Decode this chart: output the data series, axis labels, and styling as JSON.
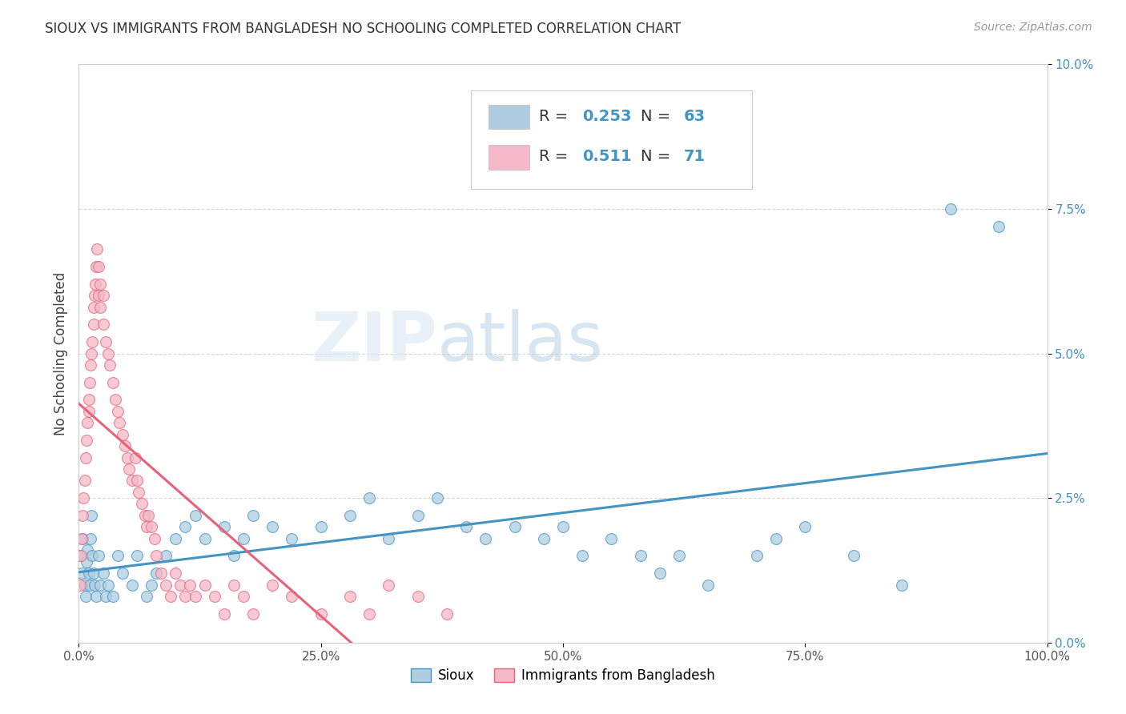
{
  "title": "SIOUX VS IMMIGRANTS FROM BANGLADESH NO SCHOOLING COMPLETED CORRELATION CHART",
  "source": "Source: ZipAtlas.com",
  "ylabel": "No Schooling Completed",
  "legend1_label": "Sioux",
  "legend2_label": "Immigrants from Bangladesh",
  "R1": 0.253,
  "N1": 63,
  "R2": 0.511,
  "N2": 71,
  "color1": "#aecde1",
  "color2": "#f4b8c8",
  "line1_color": "#4393c3",
  "line2_color": "#e8637a",
  "background": "#ffffff",
  "grid_color": "#cccccc",
  "xlim": [
    0.0,
    1.0
  ],
  "ylim": [
    0.0,
    0.1
  ],
  "sioux_x": [
    0.002,
    0.003,
    0.004,
    0.006,
    0.007,
    0.008,
    0.009,
    0.01,
    0.011,
    0.012,
    0.013,
    0.014,
    0.015,
    0.016,
    0.018,
    0.02,
    0.022,
    0.025,
    0.028,
    0.03,
    0.035,
    0.04,
    0.045,
    0.055,
    0.06,
    0.07,
    0.075,
    0.08,
    0.09,
    0.1,
    0.11,
    0.12,
    0.13,
    0.15,
    0.16,
    0.17,
    0.18,
    0.2,
    0.22,
    0.25,
    0.28,
    0.3,
    0.32,
    0.35,
    0.37,
    0.4,
    0.42,
    0.45,
    0.48,
    0.5,
    0.52,
    0.55,
    0.58,
    0.6,
    0.62,
    0.65,
    0.7,
    0.72,
    0.75,
    0.8,
    0.85,
    0.9,
    0.95
  ],
  "sioux_y": [
    0.015,
    0.012,
    0.018,
    0.01,
    0.008,
    0.014,
    0.016,
    0.012,
    0.01,
    0.018,
    0.022,
    0.015,
    0.012,
    0.01,
    0.008,
    0.015,
    0.01,
    0.012,
    0.008,
    0.01,
    0.008,
    0.015,
    0.012,
    0.01,
    0.015,
    0.008,
    0.01,
    0.012,
    0.015,
    0.018,
    0.02,
    0.022,
    0.018,
    0.02,
    0.015,
    0.018,
    0.022,
    0.02,
    0.018,
    0.02,
    0.022,
    0.025,
    0.018,
    0.022,
    0.025,
    0.02,
    0.018,
    0.02,
    0.018,
    0.02,
    0.015,
    0.018,
    0.015,
    0.012,
    0.015,
    0.01,
    0.015,
    0.018,
    0.02,
    0.015,
    0.01,
    0.075,
    0.072
  ],
  "bangladesh_x": [
    0.001,
    0.002,
    0.003,
    0.004,
    0.005,
    0.006,
    0.007,
    0.008,
    0.009,
    0.01,
    0.01,
    0.011,
    0.012,
    0.013,
    0.014,
    0.015,
    0.015,
    0.016,
    0.017,
    0.018,
    0.019,
    0.02,
    0.02,
    0.022,
    0.022,
    0.025,
    0.025,
    0.028,
    0.03,
    0.032,
    0.035,
    0.038,
    0.04,
    0.042,
    0.045,
    0.048,
    0.05,
    0.052,
    0.055,
    0.058,
    0.06,
    0.062,
    0.065,
    0.068,
    0.07,
    0.072,
    0.075,
    0.078,
    0.08,
    0.085,
    0.09,
    0.095,
    0.1,
    0.105,
    0.11,
    0.115,
    0.12,
    0.13,
    0.14,
    0.15,
    0.16,
    0.17,
    0.18,
    0.2,
    0.22,
    0.25,
    0.28,
    0.3,
    0.32,
    0.35,
    0.38
  ],
  "bangladesh_y": [
    0.01,
    0.015,
    0.018,
    0.022,
    0.025,
    0.028,
    0.032,
    0.035,
    0.038,
    0.04,
    0.042,
    0.045,
    0.048,
    0.05,
    0.052,
    0.055,
    0.058,
    0.06,
    0.062,
    0.065,
    0.068,
    0.06,
    0.065,
    0.058,
    0.062,
    0.055,
    0.06,
    0.052,
    0.05,
    0.048,
    0.045,
    0.042,
    0.04,
    0.038,
    0.036,
    0.034,
    0.032,
    0.03,
    0.028,
    0.032,
    0.028,
    0.026,
    0.024,
    0.022,
    0.02,
    0.022,
    0.02,
    0.018,
    0.015,
    0.012,
    0.01,
    0.008,
    0.012,
    0.01,
    0.008,
    0.01,
    0.008,
    0.01,
    0.008,
    0.005,
    0.01,
    0.008,
    0.005,
    0.01,
    0.008,
    0.005,
    0.008,
    0.005,
    0.01,
    0.008,
    0.005
  ]
}
